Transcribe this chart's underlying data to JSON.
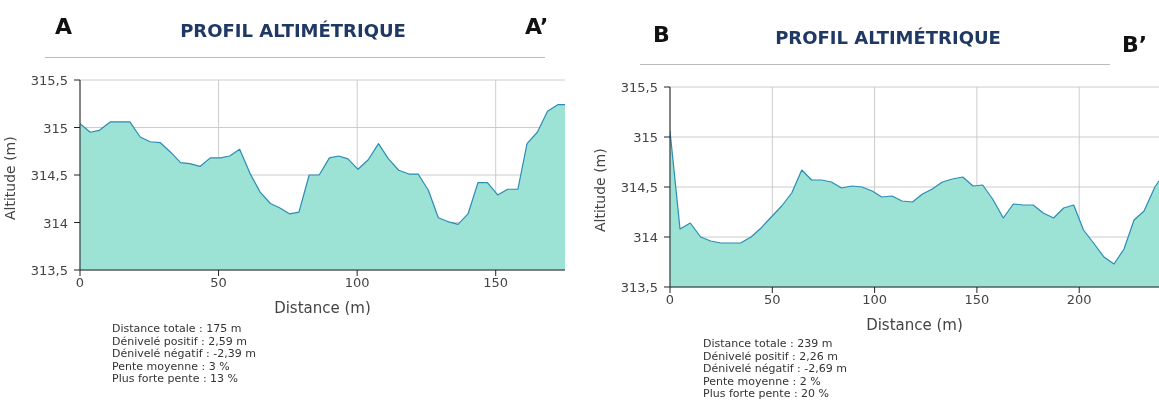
{
  "chart_data": [
    {
      "type": "area",
      "title": "PROFIL ALTIMÉTRIQUE",
      "xlabel": "Distance (m)",
      "ylabel": "Altitude (m)",
      "annotations": [
        "A",
        "A’",
        "Distance totale : 175 m",
        "Dénivelé positif : 2,59 m",
        "Dénivelé négatif : -2,39 m",
        "Pente moyenne : 3 %",
        "Plus forte pente : 13 %"
      ],
      "x": [
        0,
        3.7,
        7,
        11,
        18,
        21.7,
        25.3,
        29,
        32.7,
        36.3,
        39.6,
        43.3,
        47,
        50.7,
        54,
        57.6,
        61.3,
        65,
        68.7,
        72.3,
        75.7,
        79,
        82.7,
        86.3,
        90,
        93.3,
        96.7,
        100.3,
        104,
        107.7,
        111.3,
        115,
        118.7,
        122,
        125.7,
        129.3,
        132.7,
        136.4,
        140,
        143.6,
        147,
        150.7,
        154.3,
        158,
        161.3,
        165,
        168.7,
        172.4,
        175
      ],
      "series": [
        {
          "color": "#9ce3d6",
          "values": [
            315.04,
            314.95,
            314.97,
            315.06,
            315.06,
            314.9,
            314.85,
            314.84,
            314.74,
            314.63,
            314.62,
            314.59,
            314.68,
            314.68,
            314.7,
            314.77,
            314.52,
            314.32,
            314.2,
            314.15,
            314.09,
            314.11,
            314.5,
            314.5,
            314.68,
            314.7,
            314.67,
            314.56,
            314.66,
            314.83,
            314.67,
            314.55,
            314.51,
            314.51,
            314.34,
            314.05,
            314.01,
            313.98,
            314.09,
            314.42,
            314.42,
            314.29,
            314.35,
            314.35,
            314.83,
            314.95,
            315.17,
            315.24,
            315.24
          ]
        }
      ],
      "xlim": [
        0,
        175
      ],
      "xticks": [
        0,
        50,
        100,
        150
      ],
      "ylim": [
        313.5,
        315.5
      ],
      "yticks": [
        {
          "value": 313.5,
          "label": "313,5"
        },
        {
          "value": 314,
          "label": "314"
        },
        {
          "value": 314.5,
          "label": "314,5"
        },
        {
          "value": 315,
          "label": "315"
        },
        {
          "value": 315.5,
          "label": "315,5"
        }
      ],
      "grid": true
    },
    {
      "type": "area",
      "title": "PROFIL ALTIMÉTRIQUE",
      "xlabel": "Distance (m)",
      "ylabel": "Altitude (m)",
      "annotations": [
        "B",
        "B’",
        "Distance totale : 239 m",
        "Dénivelé positif : 2,26 m",
        "Dénivelé négatif : -2,69 m",
        "Pente moyenne : 2 %",
        "Plus forte pente : 20 %"
      ],
      "x": [
        0,
        4.9,
        9.9,
        15,
        19.9,
        24.8,
        29.6,
        34.5,
        39.6,
        44.5,
        49.5,
        54.6,
        59.5,
        64.4,
        69.2,
        74.1,
        78.9,
        83.8,
        88.9,
        93.8,
        98.8,
        103.5,
        108.5,
        113.4,
        118.5,
        123.4,
        128.2,
        133.1,
        138,
        143.1,
        148.1,
        152.8,
        157.7,
        162.9,
        167.8,
        172.7,
        177.5,
        182.4,
        187.5,
        192.4,
        197.3,
        202.1,
        207,
        212.1,
        217,
        221.9,
        226.8,
        231.7,
        237,
        239
      ],
      "series": [
        {
          "color": "#9ce3d6",
          "values": [
            315.06,
            314.08,
            314.14,
            314.0,
            313.96,
            313.94,
            313.94,
            313.94,
            314.0,
            314.09,
            314.2,
            314.31,
            314.44,
            314.67,
            314.57,
            314.57,
            314.55,
            314.49,
            314.51,
            314.5,
            314.46,
            314.4,
            314.41,
            314.36,
            314.35,
            314.43,
            314.48,
            314.55,
            314.58,
            314.6,
            314.51,
            314.52,
            314.38,
            314.19,
            314.33,
            314.32,
            314.32,
            314.24,
            314.19,
            314.29,
            314.32,
            314.07,
            313.94,
            313.8,
            313.73,
            313.88,
            314.17,
            314.26,
            314.5,
            314.56
          ]
        }
      ],
      "xlim": [
        0,
        239
      ],
      "xticks": [
        0,
        50,
        100,
        150,
        200
      ],
      "ylim": [
        313.5,
        315.5
      ],
      "yticks": [
        {
          "value": 313.5,
          "label": "313,5"
        },
        {
          "value": 314,
          "label": "314"
        },
        {
          "value": 314.5,
          "label": "314,5"
        },
        {
          "value": 315,
          "label": "315"
        },
        {
          "value": 315.5,
          "label": "315,5"
        }
      ],
      "grid": true
    }
  ]
}
